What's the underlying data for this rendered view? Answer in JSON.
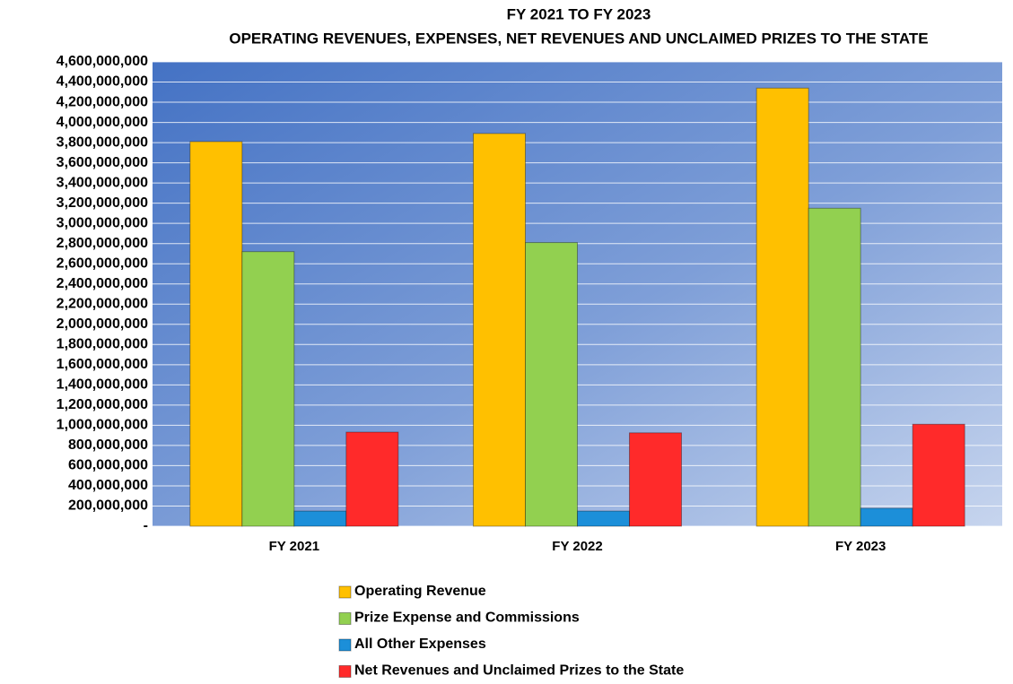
{
  "chart_data": {
    "type": "bar",
    "title": "FY 2021 TO FY 2023",
    "subtitle": "OPERATING REVENUES, EXPENSES, NET REVENUES AND UNCLAIMED PRIZES TO THE STATE",
    "categories": [
      "FY 2021",
      "FY 2022",
      "FY 2023"
    ],
    "series": [
      {
        "name": "Operating Revenue",
        "color": "#ffc000",
        "values": [
          3810000000,
          3890000000,
          4340000000
        ]
      },
      {
        "name": "Prize Expense and Commissions",
        "color": "#92d050",
        "values": [
          2720000000,
          2810000000,
          3150000000
        ]
      },
      {
        "name": "All Other Expenses",
        "color": "#1c8fd9",
        "values": [
          150000000,
          150000000,
          178000000
        ]
      },
      {
        "name": "Net Revenues and Unclaimed Prizes to the State",
        "color": "#ff2a2a",
        "values": [
          932000000,
          925000000,
          1010000000
        ]
      }
    ],
    "ylim": [
      0,
      4600000000
    ],
    "yticks": [
      {
        "value": 0,
        "label": "-"
      },
      {
        "value": 200000000,
        "label": "200,000,000"
      },
      {
        "value": 400000000,
        "label": "400,000,000"
      },
      {
        "value": 600000000,
        "label": "600,000,000"
      },
      {
        "value": 800000000,
        "label": "800,000,000"
      },
      {
        "value": 1000000000,
        "label": "1,000,000,000"
      },
      {
        "value": 1200000000,
        "label": "1,200,000,000"
      },
      {
        "value": 1400000000,
        "label": "1,400,000,000"
      },
      {
        "value": 1600000000,
        "label": "1,600,000,000"
      },
      {
        "value": 1800000000,
        "label": "1,800,000,000"
      },
      {
        "value": 2000000000,
        "label": "2,000,000,000"
      },
      {
        "value": 2200000000,
        "label": "2,200,000,000"
      },
      {
        "value": 2400000000,
        "label": "2,400,000,000"
      },
      {
        "value": 2600000000,
        "label": "2,600,000,000"
      },
      {
        "value": 2800000000,
        "label": "2,800,000,000"
      },
      {
        "value": 3000000000,
        "label": "3,000,000,000"
      },
      {
        "value": 3200000000,
        "label": "3,200,000,000"
      },
      {
        "value": 3400000000,
        "label": "3,400,000,000"
      },
      {
        "value": 3600000000,
        "label": "3,600,000,000"
      },
      {
        "value": 3800000000,
        "label": "3,800,000,000"
      },
      {
        "value": 4000000000,
        "label": "4,000,000,000"
      },
      {
        "value": 4200000000,
        "label": "4,200,000,000"
      },
      {
        "value": 4400000000,
        "label": "4,400,000,000"
      },
      {
        "value": 4600000000,
        "label": "4,600,000,000"
      }
    ],
    "grid": true
  }
}
